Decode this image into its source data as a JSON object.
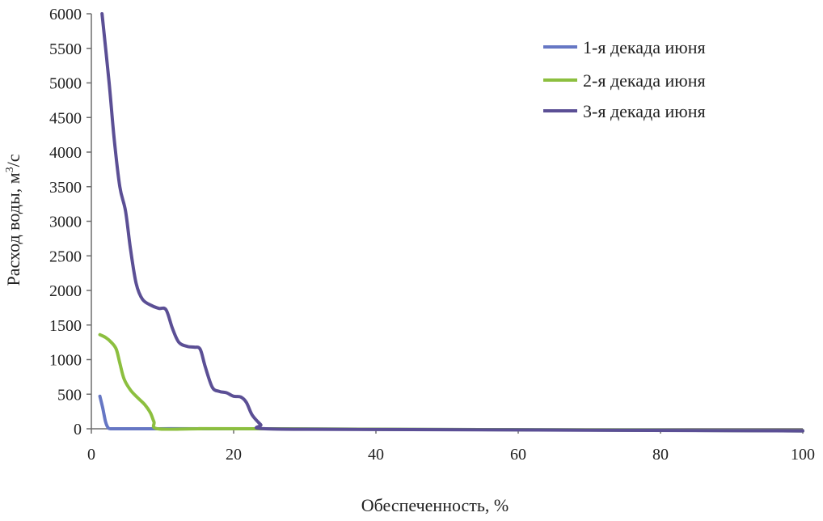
{
  "chart_data": {
    "type": "line",
    "xlabel": "Обеспеченность, %",
    "ylabel": "Расход воды, м³/с",
    "ylabel_parts": {
      "before": "Расход воды, м",
      "sup": "3",
      "after": "/с"
    },
    "xlim": [
      0,
      100
    ],
    "ylim": [
      0,
      6000
    ],
    "x_ticks": [
      0,
      20,
      40,
      60,
      80,
      100
    ],
    "y_ticks": [
      0,
      500,
      1000,
      1500,
      2000,
      2500,
      3000,
      3500,
      4000,
      4500,
      5000,
      5500,
      6000
    ],
    "grid": false,
    "legend_position": "top-right",
    "series": [
      {
        "name": "1-я декада июня",
        "color": "#6677c4",
        "points": [
          [
            1.2,
            470
          ],
          [
            1.6,
            300
          ],
          [
            2.0,
            100
          ],
          [
            2.4,
            10
          ],
          [
            3.0,
            0
          ],
          [
            5,
            0
          ],
          [
            9.5,
            0
          ],
          [
            24,
            0
          ],
          [
            100,
            -30
          ]
        ]
      },
      {
        "name": "2-я декада июня",
        "color": "#8cbf3f",
        "points": [
          [
            1.2,
            1360
          ],
          [
            2,
            1320
          ],
          [
            2.8,
            1250
          ],
          [
            3.5,
            1150
          ],
          [
            4,
            950
          ],
          [
            4.6,
            720
          ],
          [
            5.5,
            560
          ],
          [
            6.5,
            450
          ],
          [
            7.5,
            350
          ],
          [
            8.3,
            230
          ],
          [
            8.8,
            100
          ],
          [
            9.3,
            0
          ],
          [
            15,
            0
          ],
          [
            24,
            0
          ],
          [
            100,
            -30
          ]
        ]
      },
      {
        "name": "3-я декада июня",
        "color": "#5b4f95",
        "points": [
          [
            1.5,
            6000
          ],
          [
            2.5,
            5000
          ],
          [
            3.2,
            4200
          ],
          [
            4,
            3500
          ],
          [
            4.8,
            3150
          ],
          [
            5.5,
            2600
          ],
          [
            6.3,
            2100
          ],
          [
            7.2,
            1870
          ],
          [
            8.5,
            1780
          ],
          [
            9.5,
            1740
          ],
          [
            10.5,
            1720
          ],
          [
            11.4,
            1450
          ],
          [
            12.3,
            1250
          ],
          [
            13.5,
            1190
          ],
          [
            14.5,
            1180
          ],
          [
            15.3,
            1150
          ],
          [
            16,
            900
          ],
          [
            17,
            600
          ],
          [
            18,
            540
          ],
          [
            19,
            520
          ],
          [
            20,
            470
          ],
          [
            21,
            460
          ],
          [
            21.8,
            380
          ],
          [
            22.6,
            200
          ],
          [
            23.8,
            60
          ],
          [
            24.5,
            0
          ],
          [
            40,
            -10
          ],
          [
            100,
            -30
          ]
        ]
      }
    ]
  }
}
